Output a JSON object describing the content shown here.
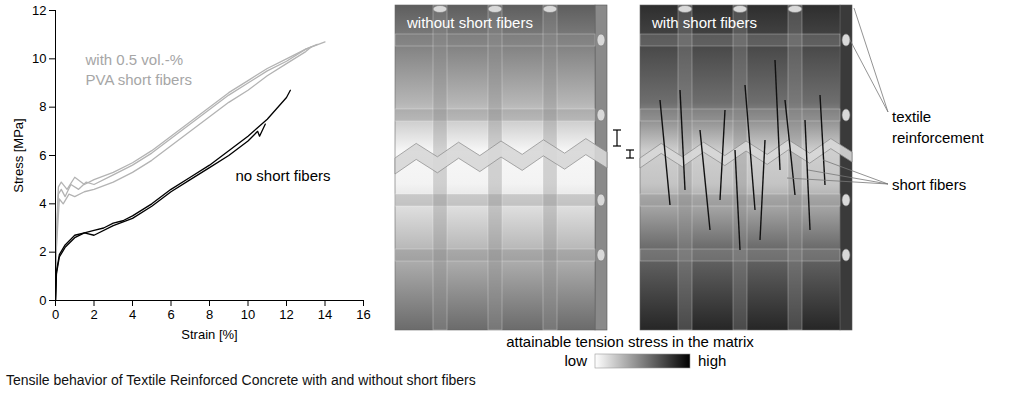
{
  "chart_data": {
    "type": "line",
    "x_label": "Strain [%]",
    "y_label": "Stress [MPa]",
    "xlim": [
      0,
      16
    ],
    "xticks": [
      0,
      2,
      4,
      6,
      8,
      10,
      12,
      14,
      16
    ],
    "ylim": [
      0,
      12
    ],
    "yticks": [
      0,
      2,
      4,
      6,
      8,
      10,
      12
    ],
    "grid": false,
    "series": [
      {
        "color": "#b3b3b3",
        "x": [
          0,
          0.05,
          0.15,
          0.3,
          0.5,
          0.8,
          1.2,
          1.6,
          2,
          3,
          4,
          5,
          6,
          7,
          8,
          9,
          10,
          11,
          12,
          13,
          13.6
        ],
        "values": [
          0,
          2.5,
          4.4,
          4.6,
          4.3,
          4.8,
          4.6,
          4.9,
          4.8,
          5.2,
          5.6,
          6.1,
          6.7,
          7.3,
          7.9,
          8.5,
          9.0,
          9.5,
          9.9,
          10.4,
          10.6
        ]
      },
      {
        "color": "#b3b3b3",
        "x": [
          0,
          0.05,
          0.15,
          0.3,
          0.6,
          1,
          1.5,
          2,
          3,
          4,
          5,
          6,
          7,
          8,
          9,
          10,
          11,
          12,
          13,
          14
        ],
        "values": [
          0,
          2.8,
          4.7,
          4.9,
          4.6,
          5.1,
          4.8,
          5.0,
          5.3,
          5.7,
          6.2,
          6.8,
          7.4,
          8.0,
          8.6,
          9.1,
          9.6,
          10.0,
          10.4,
          10.7
        ]
      },
      {
        "color": "#b3b3b3",
        "x": [
          0,
          0.05,
          0.2,
          0.4,
          0.7,
          1,
          1.5,
          2,
          3,
          4,
          5,
          6,
          7,
          8,
          9,
          10,
          11,
          12,
          13,
          13.3
        ],
        "values": [
          0,
          2.2,
          4.2,
          4.0,
          4.4,
          4.3,
          4.5,
          4.6,
          4.9,
          5.3,
          5.8,
          6.4,
          7.0,
          7.6,
          8.2,
          8.7,
          9.3,
          9.8,
          10.3,
          10.5
        ]
      },
      {
        "color": "#000000",
        "x": [
          0,
          0.05,
          0.2,
          0.5,
          1,
          1.5,
          2,
          2.5,
          3,
          3.5,
          4,
          5,
          6,
          7,
          8,
          9,
          10,
          11,
          12,
          12.2
        ],
        "values": [
          0,
          1.2,
          1.9,
          2.3,
          2.7,
          2.8,
          2.9,
          3.0,
          3.2,
          3.3,
          3.5,
          4.0,
          4.6,
          5.1,
          5.6,
          6.2,
          6.8,
          7.5,
          8.4,
          8.7
        ]
      },
      {
        "color": "#000000",
        "x": [
          0,
          0.05,
          0.2,
          0.5,
          1,
          1.5,
          2,
          3,
          4,
          5,
          6,
          7,
          8,
          9,
          10,
          10.5,
          10.6,
          10.9
        ],
        "values": [
          0,
          1.1,
          1.8,
          2.2,
          2.6,
          2.8,
          2.7,
          3.1,
          3.4,
          3.9,
          4.5,
          5.0,
          5.5,
          6.0,
          6.6,
          7.0,
          6.8,
          7.3
        ]
      }
    ],
    "annotations": [
      {
        "text": [
          "with 0.5 vol.-%",
          "PVA short fibers"
        ],
        "color": "#a6a6a6"
      },
      {
        "text": [
          "no short fibers"
        ],
        "color": "#000000"
      }
    ]
  },
  "diagram": {
    "panels": [
      {
        "label": "without short fibers"
      },
      {
        "label": "with short fibers"
      }
    ],
    "callouts": [
      "textile reinforcement",
      "short fibers"
    ],
    "color_scale": {
      "title": "attainable tension stress in the matrix",
      "low": "low",
      "high": "high"
    }
  },
  "caption": "Tensile behavior of Textile Reinforced Concrete with and without short fibers"
}
